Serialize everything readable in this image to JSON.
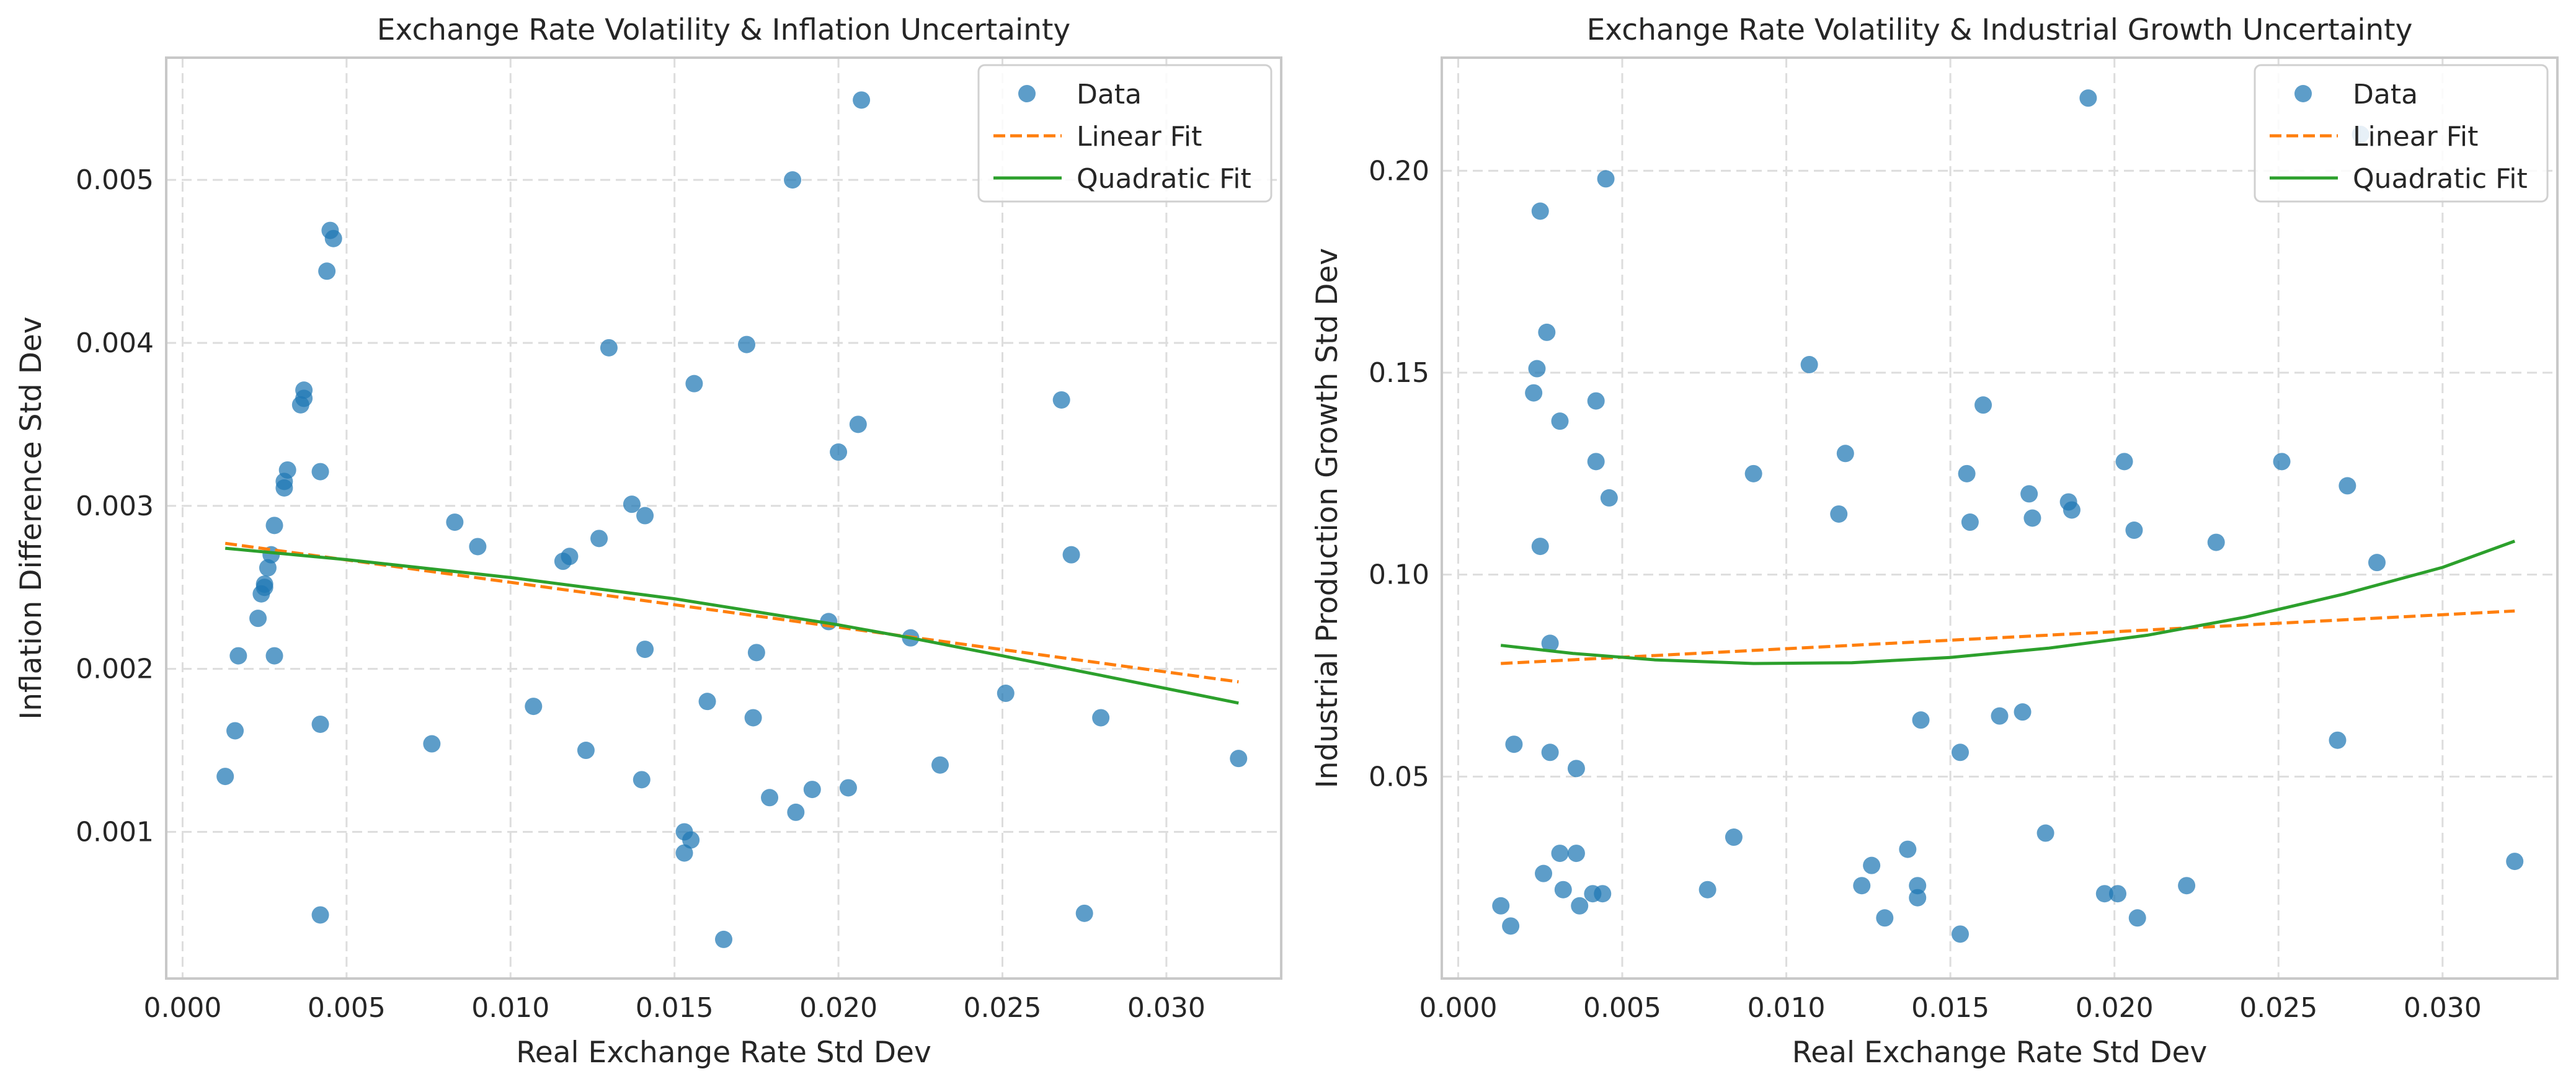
{
  "colors": {
    "data": "#1f77b4",
    "linear": "#ff7f0e",
    "quadratic": "#2ca02c",
    "grid": "#dddddd",
    "frame": "#c8c8c8"
  },
  "chart_data": [
    {
      "type": "scatter",
      "title": "Exchange Rate Volatility & Inflation Uncertainty",
      "xlabel": "Real Exchange Rate Std Dev",
      "ylabel": "Inflation Difference Std Dev",
      "xlim": [
        -0.0005,
        0.0335
      ],
      "ylim": [
        0.0001,
        0.00575
      ],
      "xticks": [
        0.0,
        0.005,
        0.01,
        0.015,
        0.02,
        0.025,
        0.03
      ],
      "xtick_labels": [
        "0.000",
        "0.005",
        "0.010",
        "0.015",
        "0.020",
        "0.025",
        "0.030"
      ],
      "yticks": [
        0.001,
        0.002,
        0.003,
        0.004,
        0.005
      ],
      "ytick_labels": [
        "0.001",
        "0.002",
        "0.003",
        "0.004",
        "0.005"
      ],
      "grid": true,
      "legend_position": "top-right",
      "legend": [
        "Data",
        "Linear Fit",
        "Quadratic Fit"
      ],
      "series": [
        {
          "name": "Data",
          "kind": "scatter",
          "points": [
            [
              0.0013,
              0.00134
            ],
            [
              0.0016,
              0.00162
            ],
            [
              0.0017,
              0.00208
            ],
            [
              0.0023,
              0.00231
            ],
            [
              0.0024,
              0.00246
            ],
            [
              0.0025,
              0.0025
            ],
            [
              0.0025,
              0.00252
            ],
            [
              0.0026,
              0.00262
            ],
            [
              0.0027,
              0.0027
            ],
            [
              0.0028,
              0.00208
            ],
            [
              0.0028,
              0.00288
            ],
            [
              0.0031,
              0.00311
            ],
            [
              0.0031,
              0.00315
            ],
            [
              0.0032,
              0.00322
            ],
            [
              0.0036,
              0.00362
            ],
            [
              0.0037,
              0.00366
            ],
            [
              0.0037,
              0.00371
            ],
            [
              0.0042,
              0.00321
            ],
            [
              0.0042,
              0.00166
            ],
            [
              0.0042,
              0.00049
            ],
            [
              0.0044,
              0.00444
            ],
            [
              0.0045,
              0.00469
            ],
            [
              0.0046,
              0.00464
            ],
            [
              0.0076,
              0.00154
            ],
            [
              0.0083,
              0.0029
            ],
            [
              0.009,
              0.00275
            ],
            [
              0.0107,
              0.00177
            ],
            [
              0.0116,
              0.00266
            ],
            [
              0.0118,
              0.00269
            ],
            [
              0.0123,
              0.0015
            ],
            [
              0.0127,
              0.0028
            ],
            [
              0.013,
              0.00397
            ],
            [
              0.0137,
              0.00301
            ],
            [
              0.014,
              0.00132
            ],
            [
              0.0141,
              0.00212
            ],
            [
              0.0141,
              0.00294
            ],
            [
              0.0153,
              0.001
            ],
            [
              0.0153,
              0.00087
            ],
            [
              0.0155,
              0.00095
            ],
            [
              0.0156,
              0.00375
            ],
            [
              0.016,
              0.0018
            ],
            [
              0.0165,
              0.00034
            ],
            [
              0.0172,
              0.00399
            ],
            [
              0.0174,
              0.0017
            ],
            [
              0.0175,
              0.0021
            ],
            [
              0.0179,
              0.00121
            ],
            [
              0.0186,
              0.005
            ],
            [
              0.0187,
              0.00112
            ],
            [
              0.0192,
              0.00126
            ],
            [
              0.0197,
              0.00229
            ],
            [
              0.02,
              0.00333
            ],
            [
              0.0203,
              0.00127
            ],
            [
              0.0206,
              0.0035
            ],
            [
              0.0207,
              0.00549
            ],
            [
              0.0222,
              0.00219
            ],
            [
              0.0231,
              0.00141
            ],
            [
              0.0251,
              0.00185
            ],
            [
              0.0268,
              0.00365
            ],
            [
              0.0271,
              0.0027
            ],
            [
              0.0275,
              0.0005
            ],
            [
              0.028,
              0.0017
            ],
            [
              0.0322,
              0.00145
            ]
          ]
        },
        {
          "name": "Linear Fit",
          "kind": "line-dashed",
          "points": [
            [
              0.0013,
              0.00277
            ],
            [
              0.0322,
              0.00192
            ]
          ]
        },
        {
          "name": "Quadratic Fit",
          "kind": "line",
          "points": [
            [
              0.0013,
              0.00274
            ],
            [
              0.005,
              0.00267
            ],
            [
              0.01,
              0.00256
            ],
            [
              0.015,
              0.00243
            ],
            [
              0.02,
              0.00227
            ],
            [
              0.0222,
              0.00219
            ],
            [
              0.025,
              0.00208
            ],
            [
              0.028,
              0.00196
            ],
            [
              0.0322,
              0.00179
            ]
          ]
        }
      ]
    },
    {
      "type": "scatter",
      "title": "Exchange Rate Volatility & Industrial Growth Uncertainty",
      "xlabel": "Real Exchange Rate Std Dev",
      "ylabel": "Industrial Production Growth Std Dev",
      "xlim": [
        -0.0005,
        0.0335
      ],
      "ylim": [
        0.0,
        0.228
      ],
      "xticks": [
        0.0,
        0.005,
        0.01,
        0.015,
        0.02,
        0.025,
        0.03
      ],
      "xtick_labels": [
        "0.000",
        "0.005",
        "0.010",
        "0.015",
        "0.020",
        "0.025",
        "0.030"
      ],
      "yticks": [
        0.05,
        0.1,
        0.15,
        0.2
      ],
      "ytick_labels": [
        "0.05",
        "0.10",
        "0.15",
        "0.20"
      ],
      "grid": true,
      "legend_position": "top-right",
      "legend": [
        "Data",
        "Linear Fit",
        "Quadratic Fit"
      ],
      "series": [
        {
          "name": "Data",
          "kind": "scatter",
          "points": [
            [
              0.0013,
              0.018
            ],
            [
              0.0016,
              0.013
            ],
            [
              0.0017,
              0.058
            ],
            [
              0.0023,
              0.145
            ],
            [
              0.0024,
              0.151
            ],
            [
              0.0025,
              0.19
            ],
            [
              0.0025,
              0.107
            ],
            [
              0.0026,
              0.026
            ],
            [
              0.0027,
              0.16
            ],
            [
              0.0028,
              0.056
            ],
            [
              0.0028,
              0.083
            ],
            [
              0.0031,
              0.031
            ],
            [
              0.0031,
              0.138
            ],
            [
              0.0032,
              0.022
            ],
            [
              0.0036,
              0.031
            ],
            [
              0.0036,
              0.052
            ],
            [
              0.0037,
              0.018
            ],
            [
              0.0041,
              0.021
            ],
            [
              0.0042,
              0.143
            ],
            [
              0.0042,
              0.128
            ],
            [
              0.0044,
              0.021
            ],
            [
              0.0045,
              0.198
            ],
            [
              0.0046,
              0.119
            ],
            [
              0.0076,
              0.022
            ],
            [
              0.0084,
              0.035
            ],
            [
              0.009,
              0.125
            ],
            [
              0.0107,
              0.152
            ],
            [
              0.0116,
              0.115
            ],
            [
              0.0118,
              0.13
            ],
            [
              0.0123,
              0.023
            ],
            [
              0.0126,
              0.028
            ],
            [
              0.013,
              0.015
            ],
            [
              0.0137,
              0.032
            ],
            [
              0.014,
              0.023
            ],
            [
              0.014,
              0.02
            ],
            [
              0.0141,
              0.064
            ],
            [
              0.0153,
              0.011
            ],
            [
              0.0153,
              0.056
            ],
            [
              0.0155,
              0.125
            ],
            [
              0.0156,
              0.113
            ],
            [
              0.016,
              0.142
            ],
            [
              0.0165,
              0.065
            ],
            [
              0.0172,
              0.066
            ],
            [
              0.0174,
              0.12
            ],
            [
              0.0175,
              0.114
            ],
            [
              0.0179,
              0.036
            ],
            [
              0.0186,
              0.118
            ],
            [
              0.0187,
              0.116
            ],
            [
              0.0192,
              0.218
            ],
            [
              0.0197,
              0.021
            ],
            [
              0.0201,
              0.021
            ],
            [
              0.0203,
              0.128
            ],
            [
              0.0206,
              0.111
            ],
            [
              0.0207,
              0.015
            ],
            [
              0.0222,
              0.023
            ],
            [
              0.0231,
              0.108
            ],
            [
              0.0251,
              0.128
            ],
            [
              0.0268,
              0.059
            ],
            [
              0.0271,
              0.122
            ],
            [
              0.0275,
              0.209
            ],
            [
              0.028,
              0.103
            ],
            [
              0.0322,
              0.029
            ]
          ]
        },
        {
          "name": "Linear Fit",
          "kind": "line-dashed",
          "points": [
            [
              0.0013,
              0.078
            ],
            [
              0.0322,
              0.091
            ]
          ]
        },
        {
          "name": "Quadratic Fit",
          "kind": "line",
          "points": [
            [
              0.0013,
              0.0825
            ],
            [
              0.0035,
              0.0805
            ],
            [
              0.006,
              0.0789
            ],
            [
              0.009,
              0.078
            ],
            [
              0.012,
              0.0782
            ],
            [
              0.015,
              0.0795
            ],
            [
              0.018,
              0.0818
            ],
            [
              0.021,
              0.085
            ],
            [
              0.024,
              0.0895
            ],
            [
              0.027,
              0.0952
            ],
            [
              0.03,
              0.1018
            ],
            [
              0.0322,
              0.1083
            ]
          ]
        }
      ]
    }
  ]
}
